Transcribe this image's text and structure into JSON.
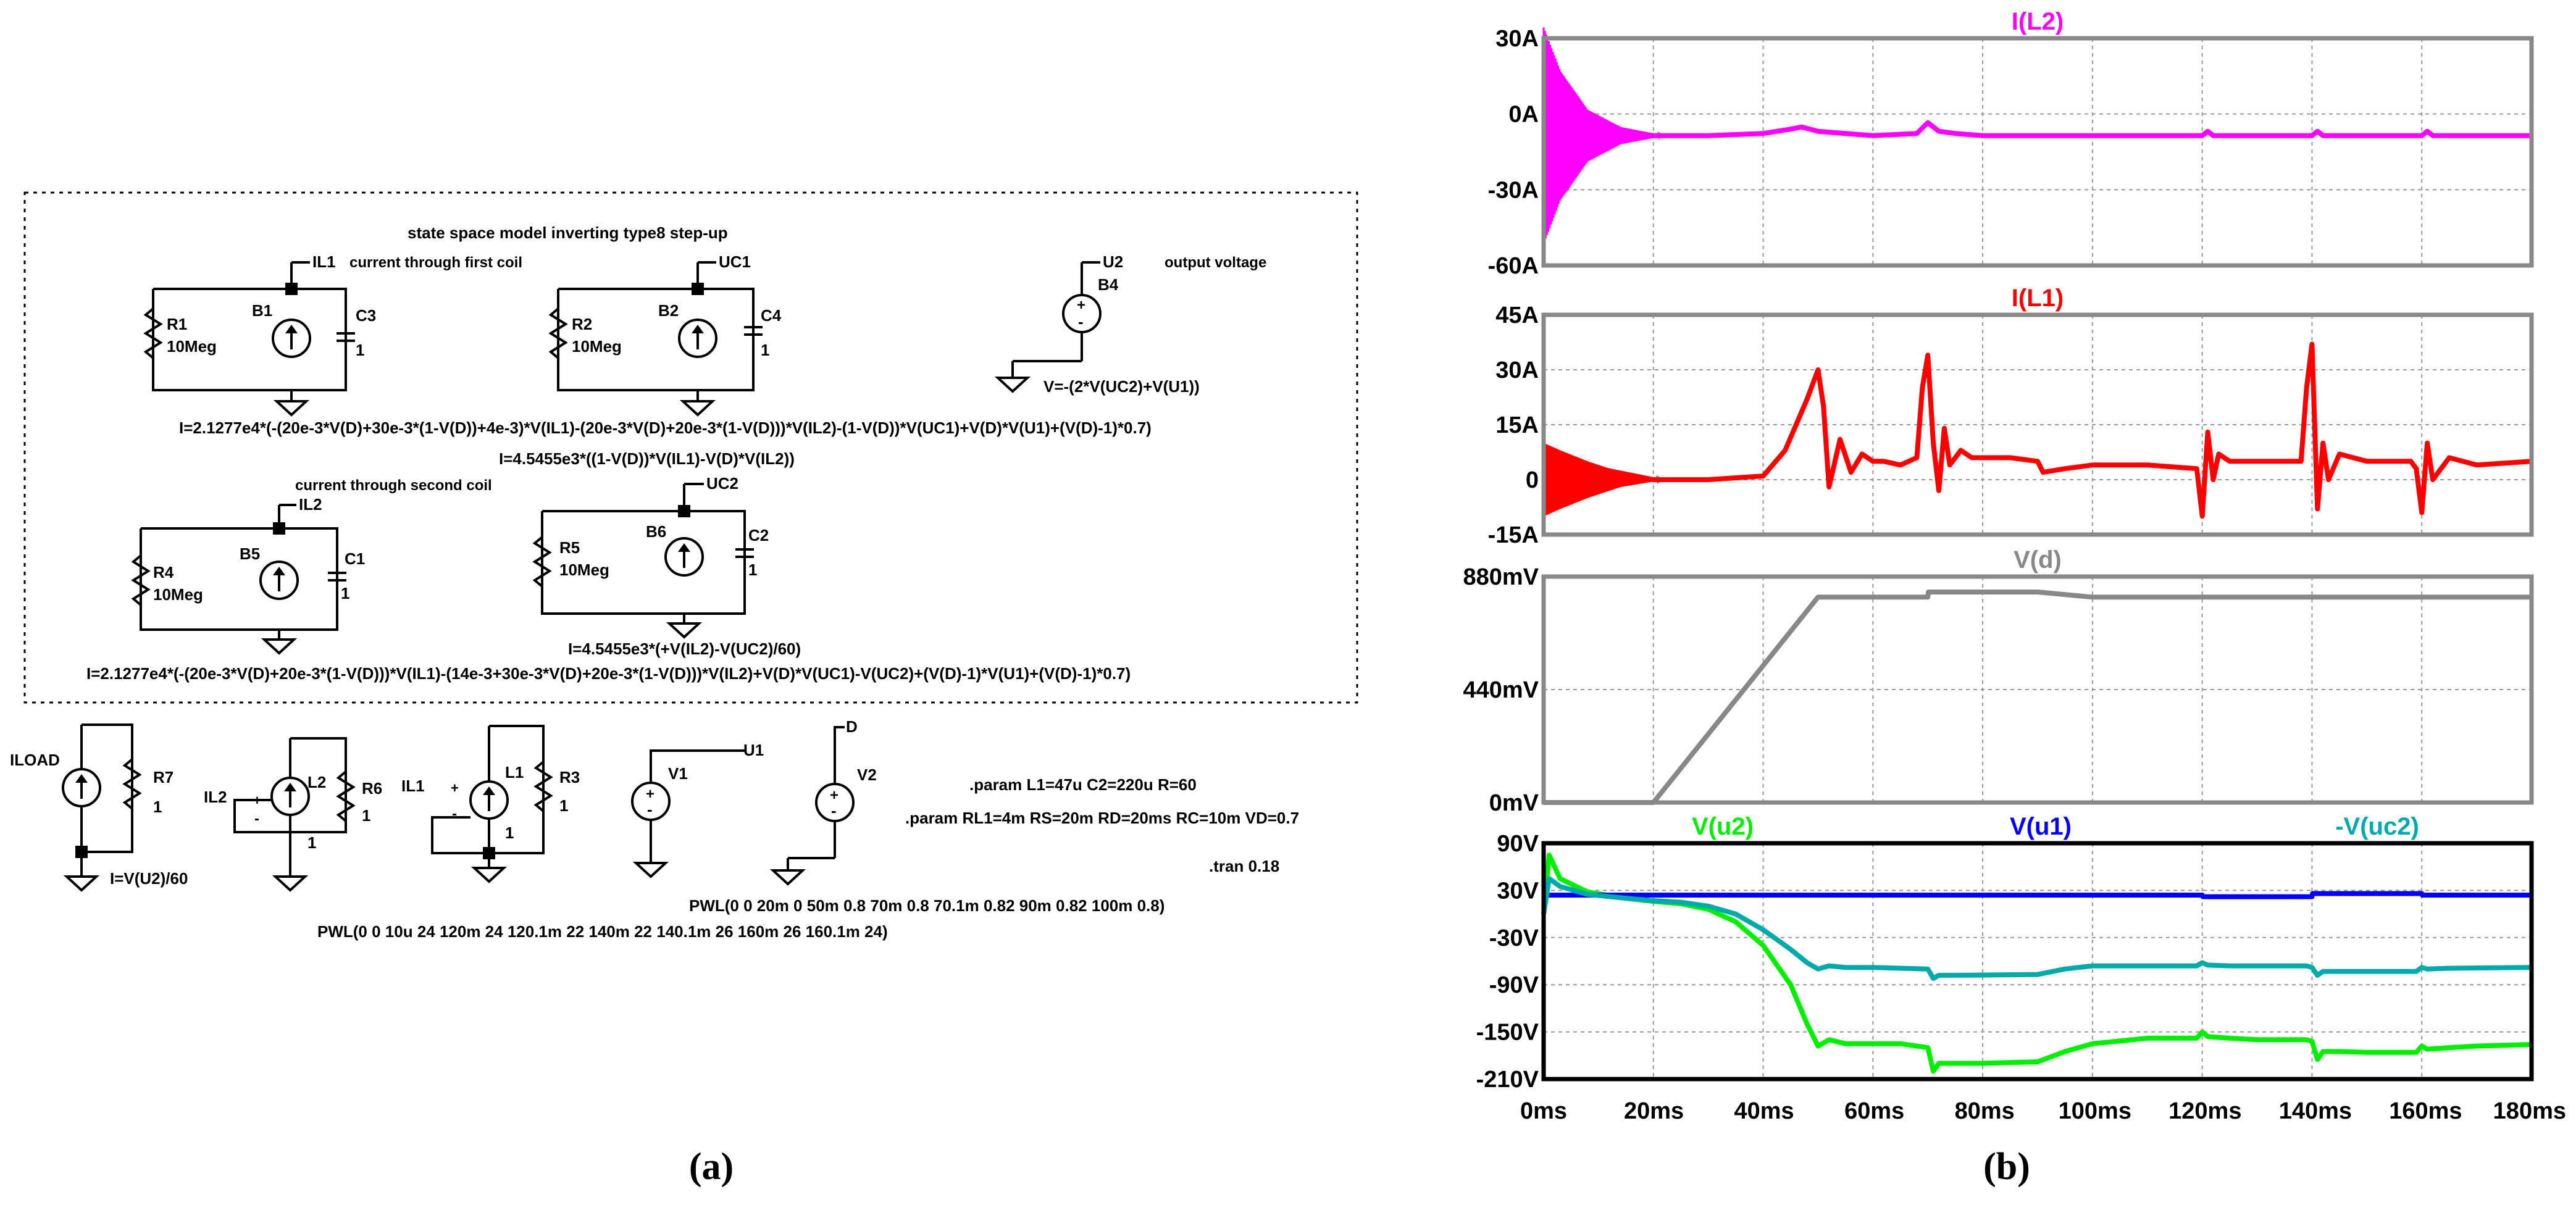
{
  "panel_a": {
    "caption": "(a)",
    "title": "state space model inverting type8 step-up",
    "row1": {
      "net_il1": "IL1",
      "net_il1_note": "current through first coil",
      "r1": "R1",
      "r1_val": "10Meg",
      "b1": "B1",
      "c3": "C3",
      "c3_val": "1",
      "net_uc1": "UC1",
      "r2": "R2",
      "r2_val": "10Meg",
      "b2": "B2",
      "c4": "C4",
      "c4_val": "1",
      "net_u2": "U2",
      "net_u2_note": "output voltage",
      "b4": "B4",
      "b4_expr": "V=-(2*V(UC2)+V(U1))",
      "expr_b1": "I=2.1277e4*(-(20e-3*V(D)+30e-3*(1-V(D))+4e-3)*V(IL1)-(20e-3*V(D)+20e-3*(1-V(D)))*V(IL2)-(1-V(D))*V(UC1)+V(D)*V(U1)+(V(D)-1)*0.7)",
      "expr_b2": "I=4.5455e3*((1-V(D))*V(IL1)-V(D)*V(IL2))"
    },
    "row2": {
      "net_il2_note": "current through second coil",
      "net_il2": "IL2",
      "r4": "R4",
      "r4_val": "10Meg",
      "b5": "B5",
      "c1": "C1",
      "c1_val": "1",
      "net_uc2": "UC2",
      "r5": "R5",
      "r5_val": "10Meg",
      "b6": "B6",
      "c2": "C2",
      "c2_val": "1",
      "expr_b6": "I=4.5455e3*(+V(IL2)-V(UC2)/60)",
      "expr_b5": "I=2.1277e4*(-(20e-3*V(D)+20e-3*(1-V(D)))*V(IL1)-(14e-3+30e-3*V(D)+20e-3*(1-V(D)))*V(IL2)+V(D)*V(UC1)-V(UC2)+(V(D)-1)*V(U1)+(V(D)-1)*0.7)"
    },
    "row3": {
      "iload": "ILOAD",
      "r7": "R7",
      "r7_val": "1",
      "iload_expr": "I=V(U2)/60",
      "il2_ctrl": "IL2",
      "l2": "L2",
      "l2_val": "1",
      "r6": "R6",
      "r6_val": "1",
      "il1_ctrl": "IL1",
      "l1": "L1",
      "l1_val": "1",
      "r3": "R3",
      "r3_val": "1",
      "v1": "V1",
      "net_u1": "U1",
      "v2": "V2",
      "net_d": "D",
      "param1": ".param L1=47u C2=220u R=60",
      "param2": ".param RL1=4m RS=20m RD=20ms RC=10m VD=0.7",
      "tran": ".tran 0.18",
      "pwl_d": "PWL(0 0 20m 0 50m 0.8 70m 0.8 70.1m 0.82 90m 0.82 100m 0.8)",
      "pwl_u1": "PWL(0 0 10u 24 120m 24 120.1m 22 140m 22 140.1m 26 160m 26 160.1m 24)",
      "plus": "+",
      "minus": "-"
    }
  },
  "panel_b": {
    "caption": "(b)",
    "x_ticks": [
      "0ms",
      "20ms",
      "40ms",
      "60ms",
      "80ms",
      "100ms",
      "120ms",
      "140ms",
      "160ms",
      "180ms"
    ]
  },
  "chart_data": [
    {
      "type": "line",
      "title": "I(L2)",
      "colors": [
        "#ff00ff"
      ],
      "x_unit": "ms",
      "xlim": [
        0,
        180
      ],
      "ylim": [
        -60,
        45
      ],
      "yticks": [
        "30A",
        "0A",
        "-30A",
        "-60A"
      ],
      "grid": true,
      "series": [
        {
          "name": "I(L2)",
          "color": "#ff00ff",
          "x": [
            0,
            2,
            5,
            8,
            12,
            16,
            20,
            30,
            40,
            45,
            47,
            50,
            60,
            68,
            70,
            72,
            75,
            80,
            100,
            120,
            121,
            122,
            140,
            141,
            142,
            160,
            161,
            162,
            180
          ],
          "y": [
            0,
            2,
            1,
            1,
            0.5,
            0.3,
            0,
            0,
            1,
            3,
            4,
            2,
            0,
            1,
            6,
            2,
            1,
            0,
            0,
            0,
            2,
            0,
            0,
            2,
            0,
            0,
            2,
            0,
            0
          ]
        }
      ],
      "envelope": {
        "x": [
          0,
          3,
          8,
          14,
          22
        ],
        "amplitude": [
          50,
          30,
          12,
          4,
          0
        ]
      }
    },
    {
      "type": "line",
      "title": "I(L1)",
      "colors": [
        "#ff0000"
      ],
      "x_unit": "ms",
      "xlim": [
        0,
        180
      ],
      "ylim": [
        -15,
        45
      ],
      "yticks": [
        "45A",
        "30A",
        "15A",
        "0",
        "-15A"
      ],
      "grid": true,
      "series": [
        {
          "name": "I(L1)",
          "color": "#ff0000",
          "x": [
            0,
            5,
            10,
            20,
            30,
            40,
            44,
            48,
            50,
            51,
            52,
            54,
            56,
            58,
            60,
            62,
            65,
            68,
            69,
            70,
            71,
            72,
            73,
            74,
            76,
            78,
            80,
            85,
            90,
            91,
            95,
            100,
            110,
            119,
            120,
            121,
            122,
            123,
            125,
            130,
            138,
            139,
            140,
            141,
            142,
            143,
            145,
            150,
            158,
            159,
            160,
            161,
            162,
            165,
            170,
            180
          ],
          "y": [
            5,
            4,
            3,
            0,
            0,
            1,
            8,
            22,
            30,
            20,
            -2,
            11,
            2,
            7,
            5,
            5,
            4,
            6,
            25,
            34,
            10,
            -3,
            14,
            4,
            8,
            6,
            6,
            6,
            5,
            2,
            3,
            4,
            4,
            3,
            -10,
            13,
            0,
            7,
            5,
            5,
            5,
            25,
            37,
            -8,
            10,
            0,
            7,
            5,
            5,
            3,
            -9,
            10,
            0,
            6,
            4,
            5
          ]
        }
      ],
      "envelope": {
        "x": [
          0,
          3,
          8,
          14,
          22
        ],
        "amplitude": [
          10,
          8,
          5,
          2,
          0
        ]
      }
    },
    {
      "type": "line",
      "title": "V(d)",
      "colors": [
        "#888888"
      ],
      "x_unit": "ms",
      "xlim": [
        0,
        180
      ],
      "ylim": [
        0,
        880
      ],
      "yticks": [
        "880mV",
        "440mV",
        "0mV"
      ],
      "grid": true,
      "series": [
        {
          "name": "V(d)",
          "color": "#888888",
          "x": [
            0,
            20,
            50,
            70,
            70.1,
            90,
            100,
            180
          ],
          "y": [
            0,
            0,
            800,
            800,
            820,
            820,
            800,
            800
          ]
        }
      ]
    },
    {
      "type": "line",
      "colors": [
        "#00ee00",
        "#0000ff",
        "#00aaaa"
      ],
      "x_unit": "ms",
      "xlim": [
        0,
        180
      ],
      "ylim": [
        -210,
        90
      ],
      "yticks": [
        "90V",
        "30V",
        "-30V",
        "-90V",
        "-150V",
        "-210V"
      ],
      "grid": true,
      "series": [
        {
          "name": "V(u2)",
          "color": "#00ee00",
          "x": [
            0,
            1,
            3,
            8,
            15,
            20,
            25,
            30,
            35,
            40,
            45,
            48,
            50,
            52,
            55,
            60,
            65,
            70,
            71,
            72,
            75,
            80,
            90,
            95,
            100,
            110,
            119,
            120,
            121,
            125,
            130,
            139,
            140,
            141,
            142,
            145,
            150,
            159,
            160,
            161,
            165,
            170,
            180
          ],
          "y": [
            0,
            75,
            45,
            28,
            20,
            16,
            13,
            6,
            -10,
            -40,
            -90,
            -140,
            -168,
            -160,
            -165,
            -165,
            -165,
            -170,
            -200,
            -190,
            -190,
            -190,
            -188,
            -175,
            -165,
            -158,
            -158,
            -150,
            -156,
            -158,
            -160,
            -160,
            -162,
            -185,
            -175,
            -175,
            -176,
            -176,
            -168,
            -172,
            -170,
            -168,
            -166
          ]
        },
        {
          "name": "V(u1)",
          "color": "#0000ff",
          "x": [
            0,
            0.5,
            5,
            120,
            120.1,
            140,
            140.1,
            160,
            160.1,
            180
          ],
          "y": [
            0,
            24,
            24,
            24,
            22,
            22,
            26,
            26,
            24,
            24
          ]
        },
        {
          "name": "-V(uc2)",
          "color": "#00aaaa",
          "x": [
            0,
            1,
            3,
            8,
            15,
            20,
            25,
            30,
            35,
            40,
            45,
            48,
            50,
            52,
            55,
            60,
            70,
            71,
            72,
            75,
            90,
            95,
            100,
            119,
            120,
            121,
            125,
            139,
            140,
            141,
            142,
            145,
            159,
            160,
            161,
            165,
            180
          ],
          "y": [
            0,
            45,
            35,
            25,
            20,
            17,
            15,
            10,
            0,
            -20,
            -45,
            -62,
            -70,
            -66,
            -68,
            -68,
            -70,
            -82,
            -78,
            -78,
            -77,
            -70,
            -66,
            -66,
            -62,
            -65,
            -66,
            -66,
            -68,
            -78,
            -73,
            -73,
            -73,
            -68,
            -70,
            -69,
            -68
          ]
        }
      ]
    }
  ]
}
